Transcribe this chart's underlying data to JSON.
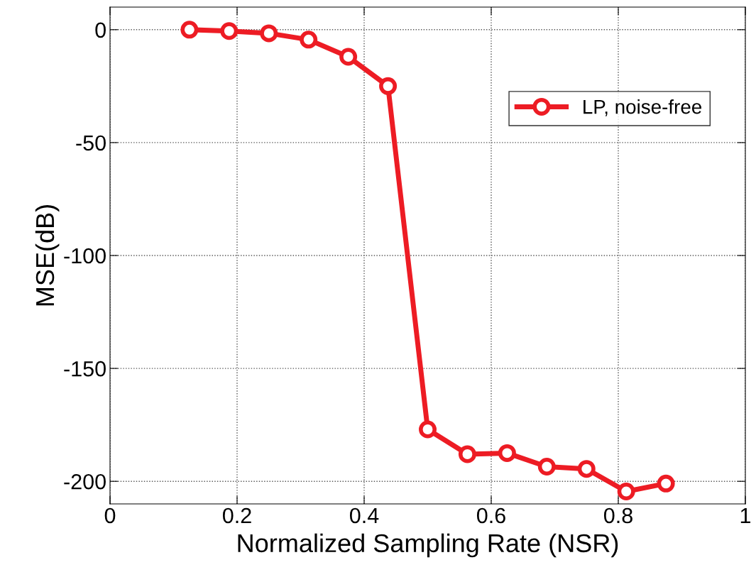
{
  "chart_data": {
    "type": "line",
    "xlabel": "Normalized Sampling Rate (NSR)",
    "ylabel": "MSE(dB)",
    "x": [
      0.125,
      0.1875,
      0.25,
      0.3125,
      0.375,
      0.4375,
      0.5,
      0.5625,
      0.625,
      0.6875,
      0.75,
      0.8125,
      0.875
    ],
    "series": [
      {
        "name": "LP, noise-free",
        "color": "#ed1c24",
        "values": [
          0,
          -0.6,
          -1.6,
          -4.4,
          -12,
          -25,
          -177,
          -188,
          -187.5,
          -193.5,
          -194.5,
          -204.5,
          -201
        ]
      }
    ],
    "xlim": [
      0,
      1
    ],
    "xticks": [
      0,
      0.2,
      0.4,
      0.6,
      0.8,
      1
    ],
    "ylim": [
      -210,
      10
    ],
    "yticks": [
      -200,
      -150,
      -100,
      -50,
      0
    ],
    "grid": true,
    "legend": "top right",
    "marker": "circle",
    "line_style": "solid"
  }
}
